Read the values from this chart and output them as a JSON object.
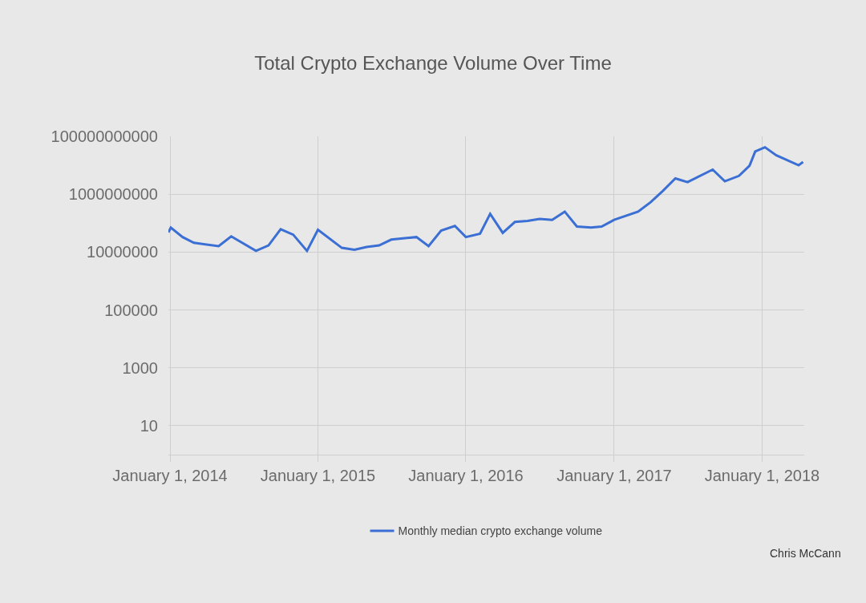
{
  "chart_data": {
    "type": "line",
    "title": "Total Crypto Exchange Volume Over Time",
    "x": [
      "2013-12-28",
      "2014-01-03",
      "2014-02-01",
      "2014-03-01",
      "2014-05-01",
      "2014-06-01",
      "2014-08-01",
      "2014-09-01",
      "2014-10-01",
      "2014-11-01",
      "2014-12-05",
      "2015-01-01",
      "2015-03-01",
      "2015-04-01",
      "2015-05-01",
      "2015-06-01",
      "2015-07-01",
      "2015-09-01",
      "2015-10-01",
      "2015-11-01",
      "2015-12-05",
      "2016-01-01",
      "2016-02-05",
      "2016-03-01",
      "2016-04-01",
      "2016-05-01",
      "2016-06-01",
      "2016-07-01",
      "2016-08-01",
      "2016-09-01",
      "2016-10-01",
      "2016-11-05",
      "2016-12-01",
      "2017-01-01",
      "2017-03-01",
      "2017-04-01",
      "2017-05-01",
      "2017-06-01",
      "2017-07-01",
      "2017-09-01",
      "2017-10-01",
      "2017-11-05",
      "2017-12-01",
      "2017-12-15",
      "2018-01-08",
      "2018-02-05",
      "2018-04-01",
      "2018-04-12"
    ],
    "series": [
      {
        "name": "Monthly median crypto exchange volume",
        "color": "#3b6fd4",
        "values": [
          48000000,
          70000000,
          33000000,
          21000000,
          16000000,
          35000000,
          11000000,
          17000000,
          62000000,
          40000000,
          11000000,
          59000000,
          14000000,
          12000000,
          15000000,
          17000000,
          27000000,
          33000000,
          16000000,
          55000000,
          80000000,
          33000000,
          43000000,
          210000000,
          46000000,
          110000000,
          120000000,
          140000000,
          130000000,
          250000000,
          76000000,
          71000000,
          76000000,
          130000000,
          250000000,
          530000000,
          1300000000,
          3500000000,
          2600000000,
          7100000000,
          2800000000,
          4300000000,
          9700000000,
          30000000000,
          42000000000,
          22000000000,
          10000000000,
          13000000000
        ]
      }
    ],
    "log": "y",
    "ylim": [
      1,
      100000000000
    ],
    "yticks": [
      10,
      1000,
      100000,
      10000000,
      1000000000,
      100000000000
    ],
    "xlim": [
      "2013-12-28",
      "2018-04-15"
    ],
    "xticks": [
      {
        "value": "2014-01-01",
        "label": "January 1, 2014"
      },
      {
        "value": "2015-01-01",
        "label": "January 1, 2015"
      },
      {
        "value": "2016-01-01",
        "label": "January 1, 2016"
      },
      {
        "value": "2017-01-01",
        "label": "January 1, 2017"
      },
      {
        "value": "2018-01-01",
        "label": "January 1, 2018"
      }
    ],
    "grid": true,
    "legend": "bottom",
    "marker": "none",
    "line_style": "solid",
    "annotations": [
      "Chris McCann"
    ]
  }
}
